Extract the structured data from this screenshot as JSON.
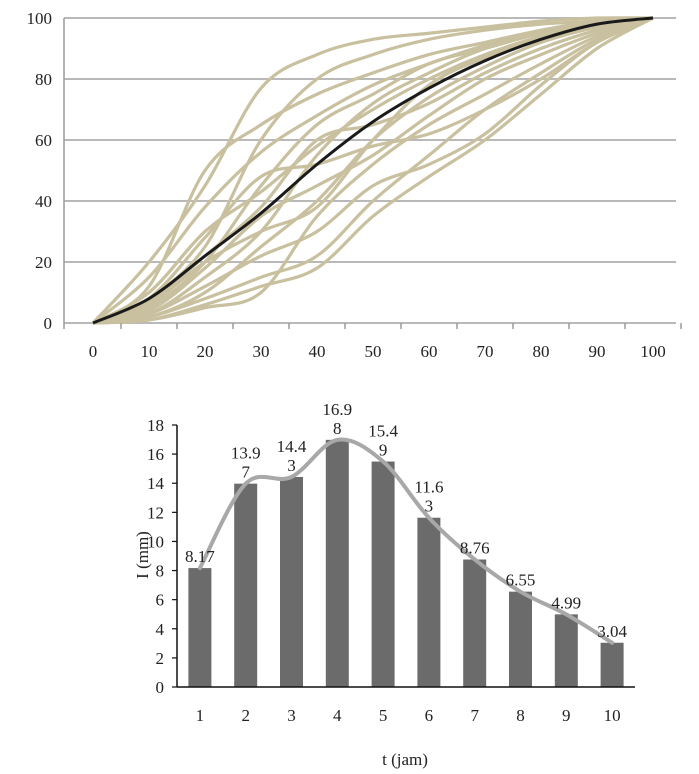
{
  "chart_data": [
    {
      "type": "line",
      "title": "",
      "xlabel": "",
      "ylabel": "",
      "x": [
        0,
        10,
        20,
        30,
        40,
        50,
        60,
        70,
        80,
        90,
        100
      ],
      "xlim": [
        0,
        100
      ],
      "ylim": [
        0,
        100
      ],
      "xticks": [
        0,
        10,
        20,
        30,
        40,
        50,
        60,
        70,
        80,
        90,
        100
      ],
      "yticks": [
        0,
        20,
        40,
        60,
        80,
        100
      ],
      "grid": "horizontal",
      "legend": "none",
      "colors": {
        "sample": "#c8c09e",
        "mean": "#1a1a1a",
        "grid": "#b9b9b9"
      },
      "series": [
        {
          "values": [
            0,
            20,
            45,
            77,
            88,
            93,
            95,
            97,
            99,
            100,
            100
          ]
        },
        {
          "values": [
            0,
            12,
            50,
            65,
            75,
            82,
            88,
            92,
            96,
            99,
            100
          ]
        },
        {
          "values": [
            0,
            8,
            25,
            60,
            80,
            88,
            93,
            96,
            98,
            99,
            100
          ]
        },
        {
          "values": [
            0,
            15,
            38,
            56,
            68,
            78,
            85,
            91,
            95,
            98,
            100
          ]
        },
        {
          "values": [
            0,
            5,
            20,
            45,
            65,
            75,
            85,
            90,
            95,
            98,
            100
          ]
        },
        {
          "values": [
            0,
            10,
            30,
            43,
            58,
            70,
            80,
            88,
            94,
            98,
            100
          ]
        },
        {
          "values": [
            0,
            3,
            15,
            30,
            55,
            72,
            82,
            90,
            95,
            98,
            100
          ]
        },
        {
          "values": [
            0,
            7,
            22,
            38,
            60,
            65,
            72,
            82,
            90,
            96,
            100
          ]
        },
        {
          "values": [
            0,
            2,
            10,
            25,
            40,
            60,
            74,
            84,
            92,
            97,
            100
          ]
        },
        {
          "values": [
            0,
            4,
            18,
            35,
            45,
            55,
            68,
            80,
            88,
            95,
            100
          ]
        },
        {
          "values": [
            0,
            2,
            8,
            15,
            22,
            40,
            55,
            70,
            82,
            93,
            100
          ]
        },
        {
          "values": [
            0,
            1,
            6,
            12,
            18,
            35,
            48,
            60,
            75,
            90,
            100
          ]
        },
        {
          "values": [
            0,
            3,
            12,
            22,
            30,
            45,
            52,
            62,
            78,
            92,
            100
          ]
        },
        {
          "values": [
            0,
            1,
            5,
            10,
            35,
            52,
            65,
            75,
            85,
            94,
            100
          ]
        },
        {
          "values": [
            0,
            8,
            28,
            48,
            52,
            58,
            62,
            70,
            80,
            92,
            100
          ]
        },
        {
          "values": [
            0,
            6,
            20,
            30,
            38,
            60,
            78,
            87,
            93,
            97,
            100
          ]
        },
        {
          "values": [
            0,
            8,
            22,
            36,
            52,
            66,
            77,
            86,
            93,
            98,
            100
          ],
          "role": "mean"
        }
      ]
    },
    {
      "type": "bar",
      "title": "",
      "xlabel": "t (jam)",
      "ylabel": "I (mm)",
      "categories": [
        "1",
        "2",
        "3",
        "4",
        "5",
        "6",
        "7",
        "8",
        "9",
        "10"
      ],
      "values": [
        8.17,
        13.97,
        14.43,
        16.98,
        15.49,
        11.63,
        8.76,
        6.55,
        4.99,
        3.04
      ],
      "data_labels": [
        "8.17",
        "13.97",
        "14.43",
        "16.98",
        "15.49",
        "11.63",
        "8.76",
        "6.55",
        "4.99",
        "3.04"
      ],
      "ylim": [
        0,
        18
      ],
      "yticks": [
        0,
        2,
        4,
        6,
        8,
        10,
        12,
        14,
        16,
        18
      ],
      "overlay": "smooth-line",
      "grid": false,
      "legend": "none",
      "colors": {
        "bar": "#6b6b6b",
        "line": "#a8a8a8",
        "axis": "#111111"
      }
    }
  ]
}
